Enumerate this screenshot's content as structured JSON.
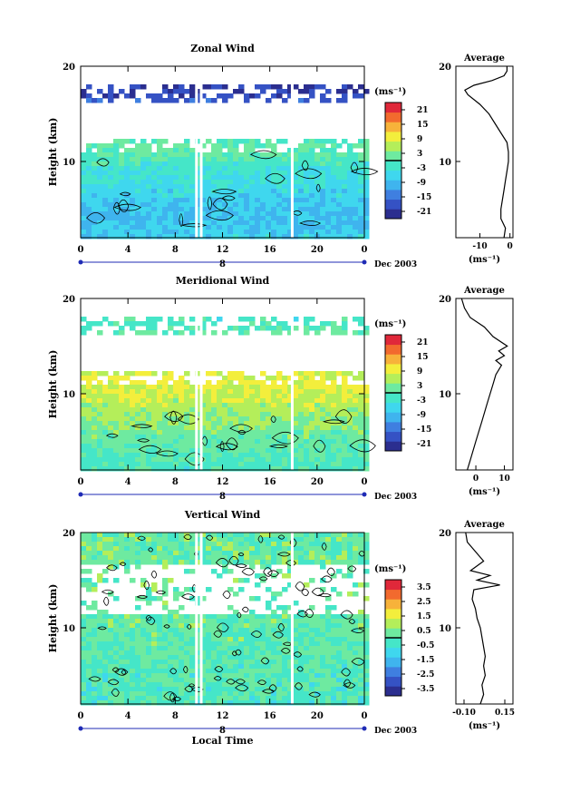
{
  "chart_data": [
    {
      "type": "heatmap",
      "title": "Zonal Wind",
      "xlabel": "",
      "ylabel": "Height (km)",
      "xlim": [
        0,
        24
      ],
      "ylim": [
        2,
        20
      ],
      "x_ticks": [
        "0",
        "4",
        "8",
        "12",
        "16",
        "20",
        "0"
      ],
      "y_ticks": [
        "20",
        "10"
      ],
      "date_marker": "8",
      "date_label": "Dec 2003",
      "colorbar": {
        "unit": "(ms⁻¹)",
        "ticks": [
          "21",
          "15",
          "9",
          "3",
          "-3",
          "-9",
          "-15",
          "-21"
        ],
        "zero_contour": "0"
      },
      "field_profile": [
        {
          "height": 2,
          "value": -6
        },
        {
          "height": 4,
          "value": -10
        },
        {
          "height": 6,
          "value": -8
        },
        {
          "height": 8,
          "value": -5
        },
        {
          "height": 10,
          "value": -2
        },
        {
          "height": 11,
          "value": 0
        },
        {
          "height": 12,
          "value": 1
        },
        {
          "height": 17.5,
          "value": -22
        }
      ],
      "data_gaps_x": [
        9.8,
        10.2,
        17.9
      ],
      "average": {
        "title": "Average",
        "xlabel": "(ms⁻¹)",
        "x_ticks": [
          "-10",
          "0"
        ],
        "xlim": [
          -18,
          1
        ],
        "y_ticks": [
          "20",
          "10"
        ],
        "profile": [
          {
            "z": 2,
            "v": -2
          },
          {
            "z": 3,
            "v": -1.5
          },
          {
            "z": 4,
            "v": -3
          },
          {
            "z": 5,
            "v": -3
          },
          {
            "z": 6,
            "v": -2.5
          },
          {
            "z": 7,
            "v": -2
          },
          {
            "z": 8,
            "v": -1.5
          },
          {
            "z": 9,
            "v": -1
          },
          {
            "z": 10,
            "v": -0.5
          },
          {
            "z": 11,
            "v": -0.5
          },
          {
            "z": 12,
            "v": -1
          },
          {
            "z": 13,
            "v": -3
          },
          {
            "z": 14,
            "v": -5
          },
          {
            "z": 15,
            "v": -7
          },
          {
            "z": 16,
            "v": -10
          },
          {
            "z": 17,
            "v": -14
          },
          {
            "z": 17.5,
            "v": -15
          },
          {
            "z": 18,
            "v": -12
          },
          {
            "z": 18.5,
            "v": -6
          },
          {
            "z": 19,
            "v": -2
          },
          {
            "z": 19.5,
            "v": -1
          },
          {
            "z": 20,
            "v": -1
          }
        ]
      }
    },
    {
      "type": "heatmap",
      "title": "Meridional Wind",
      "xlabel": "",
      "ylabel": "Height (km)",
      "xlim": [
        0,
        24
      ],
      "ylim": [
        2,
        20
      ],
      "x_ticks": [
        "0",
        "4",
        "8",
        "12",
        "16",
        "20",
        "0"
      ],
      "y_ticks": [
        "20",
        "10"
      ],
      "date_marker": "8",
      "date_label": "Dec 2003",
      "colorbar": {
        "unit": "(ms⁻¹)",
        "ticks": [
          "21",
          "15",
          "9",
          "3",
          "-3",
          "-9",
          "-15",
          "-21"
        ],
        "zero_contour": "0"
      },
      "field_profile": [
        {
          "height": 2,
          "value": -2
        },
        {
          "height": 4,
          "value": 0
        },
        {
          "height": 6,
          "value": 2
        },
        {
          "height": 8,
          "value": 5
        },
        {
          "height": 10,
          "value": 8
        },
        {
          "height": 11.5,
          "value": 10
        },
        {
          "height": 18,
          "value": -2
        }
      ],
      "data_gaps_x": [
        9.8,
        10.2,
        17.9
      ],
      "average": {
        "title": "Average",
        "xlabel": "(ms⁻¹)",
        "x_ticks": [
          "0",
          "10"
        ],
        "xlim": [
          -7,
          13
        ],
        "y_ticks": [
          "20",
          "10"
        ],
        "profile": [
          {
            "z": 2,
            "v": -3
          },
          {
            "z": 3,
            "v": -2
          },
          {
            "z": 4,
            "v": -1
          },
          {
            "z": 5,
            "v": 0
          },
          {
            "z": 6,
            "v": 1
          },
          {
            "z": 7,
            "v": 2
          },
          {
            "z": 8,
            "v": 3
          },
          {
            "z": 9,
            "v": 4
          },
          {
            "z": 10,
            "v": 5
          },
          {
            "z": 11,
            "v": 6
          },
          {
            "z": 12,
            "v": 7
          },
          {
            "z": 13,
            "v": 9
          },
          {
            "z": 13.5,
            "v": 7
          },
          {
            "z": 14,
            "v": 10
          },
          {
            "z": 14.5,
            "v": 8
          },
          {
            "z": 15,
            "v": 11
          },
          {
            "z": 16,
            "v": 6
          },
          {
            "z": 17,
            "v": 3
          },
          {
            "z": 18,
            "v": -2
          },
          {
            "z": 19,
            "v": -4
          },
          {
            "z": 20,
            "v": -5
          }
        ]
      }
    },
    {
      "type": "heatmap",
      "title": "Vertical Wind",
      "xlabel": "Local Time",
      "ylabel": "Height (km)",
      "xlim": [
        0,
        24
      ],
      "ylim": [
        2,
        20
      ],
      "x_ticks": [
        "0",
        "4",
        "8",
        "12",
        "16",
        "20",
        "0"
      ],
      "y_ticks": [
        "20",
        "10"
      ],
      "date_marker": "8",
      "date_label": "Dec 2003",
      "colorbar": {
        "unit": "(ms⁻¹)",
        "ticks": [
          "3.5",
          "2.5",
          "1.5",
          "0.5",
          "-0.5",
          "-1.5",
          "-2.5",
          "-3.5"
        ],
        "zero_contour": "0"
      },
      "field_profile": [
        {
          "height": 2,
          "value": -0.2
        },
        {
          "height": 10,
          "value": 0.1
        },
        {
          "height": 16,
          "value": 0.3
        },
        {
          "height": 19,
          "value": 0.2
        }
      ],
      "data_gaps_x": [
        9.8,
        10.2,
        17.9
      ],
      "average": {
        "title": "Average",
        "xlabel": "(ms⁻¹)",
        "x_ticks": [
          "-0.10",
          "0.15"
        ],
        "xlim": [
          -0.15,
          0.2
        ],
        "y_ticks": [
          "20",
          "10"
        ],
        "profile": [
          {
            "z": 2,
            "v": 0.0
          },
          {
            "z": 3,
            "v": 0.02
          },
          {
            "z": 4,
            "v": 0.01
          },
          {
            "z": 5,
            "v": 0.03
          },
          {
            "z": 6,
            "v": 0.02
          },
          {
            "z": 7,
            "v": 0.03
          },
          {
            "z": 8,
            "v": 0.02
          },
          {
            "z": 9,
            "v": 0.01
          },
          {
            "z": 10,
            "v": 0.0
          },
          {
            "z": 11,
            "v": -0.02
          },
          {
            "z": 12,
            "v": -0.03
          },
          {
            "z": 13,
            "v": -0.05
          },
          {
            "z": 14,
            "v": -0.04
          },
          {
            "z": 14.5,
            "v": 0.12
          },
          {
            "z": 15,
            "v": -0.02
          },
          {
            "z": 15.5,
            "v": 0.06
          },
          {
            "z": 16,
            "v": -0.06
          },
          {
            "z": 17,
            "v": 0.02
          },
          {
            "z": 18,
            "v": -0.03
          },
          {
            "z": 19,
            "v": -0.08
          },
          {
            "z": 20,
            "v": -0.09
          }
        ]
      }
    }
  ],
  "colors": {
    "palette": [
      "#2b2e8f",
      "#3552c4",
      "#3f7fe0",
      "#3fb4ee",
      "#3fd7ee",
      "#45e6c8",
      "#6eeaa0",
      "#b4ee5a",
      "#f3ee3c",
      "#f7b23a",
      "#f26a2e",
      "#e0283a"
    ],
    "axis": "#000000",
    "date_bar": "#1f2bb5"
  }
}
